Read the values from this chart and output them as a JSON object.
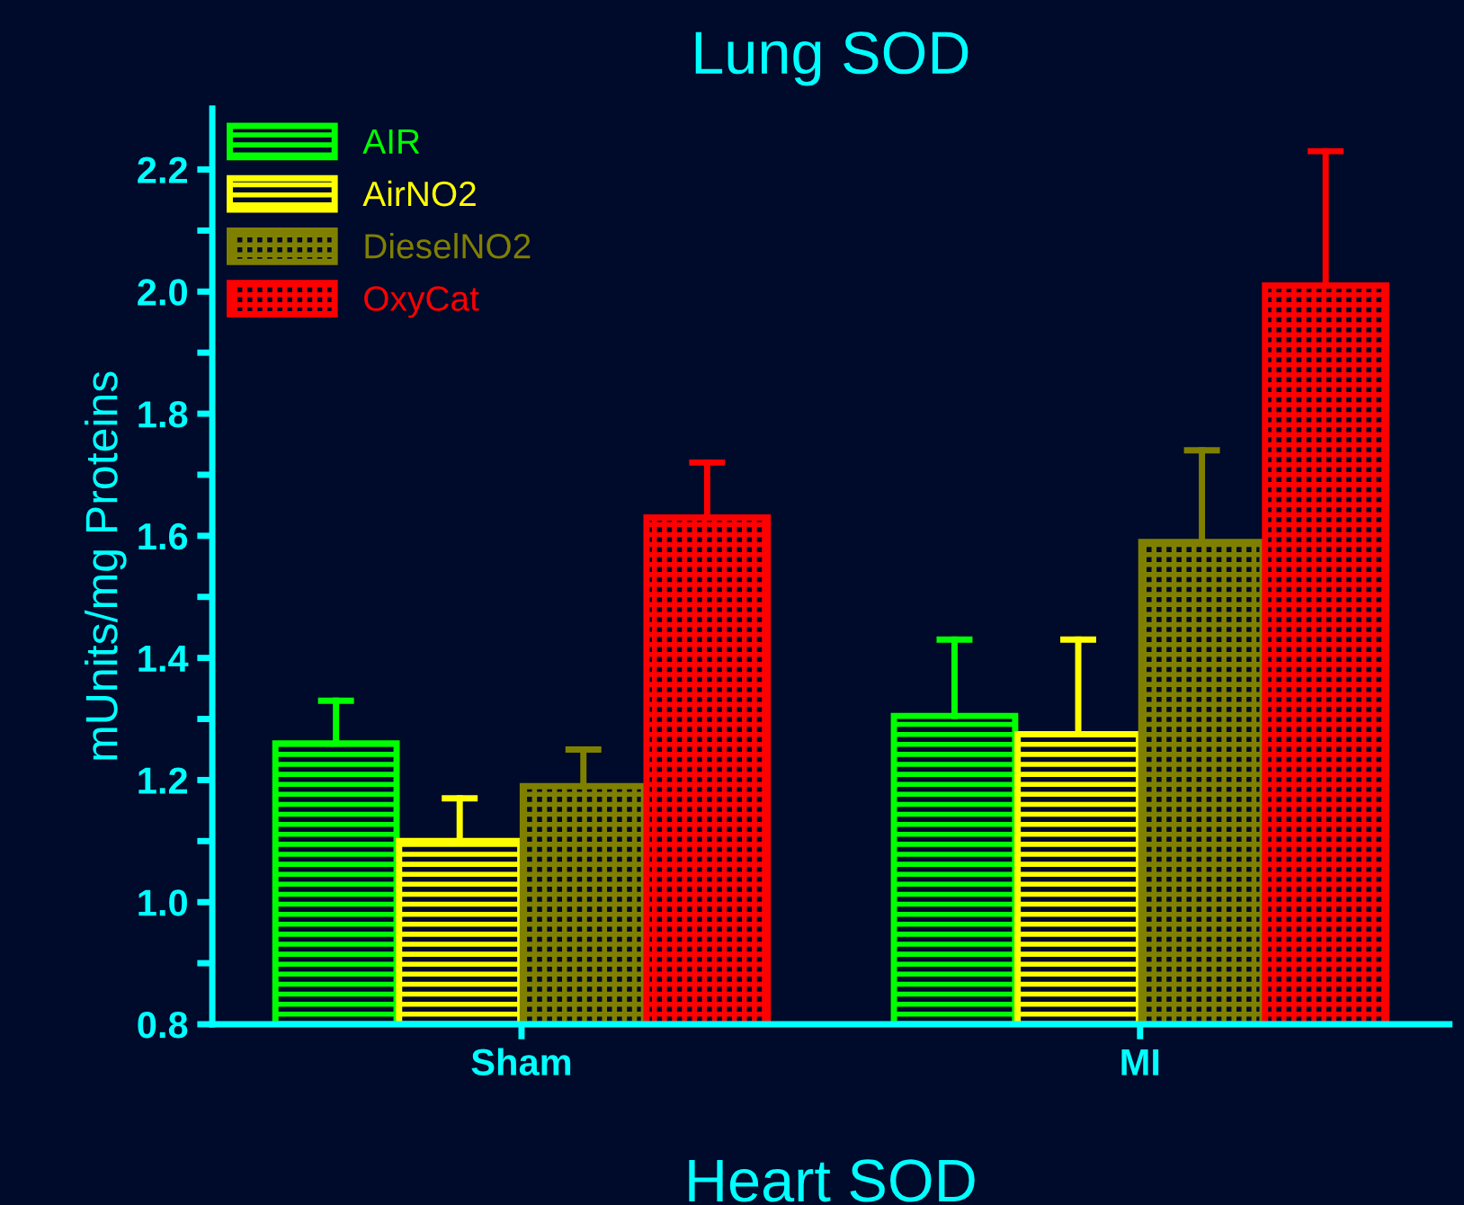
{
  "chart_data": {
    "type": "bar",
    "title": "Lung SOD",
    "xlabel": "Heart SOD",
    "ylabel": "mUnits/mg Proteins",
    "categories": [
      "Sham",
      "MI"
    ],
    "series": [
      {
        "name": "AIR",
        "color": "#00ff00",
        "values": [
          1.26,
          1.305
        ],
        "errors": [
          [
            1.26,
            1.33
          ],
          [
            1.305,
            1.43
          ]
        ]
      },
      {
        "name": "AirNO2",
        "color": "#ffff00",
        "values": [
          1.1,
          1.275
        ],
        "errors": [
          [
            1.1,
            1.17
          ],
          [
            1.275,
            1.43
          ]
        ]
      },
      {
        "name": "DieselNO2",
        "color": "#808000",
        "values": [
          1.19,
          1.59
        ],
        "errors": [
          [
            1.19,
            1.25
          ],
          [
            1.59,
            1.74
          ]
        ]
      },
      {
        "name": "OxyCat",
        "color": "#ff0000",
        "values": [
          1.63,
          2.01
        ],
        "errors": [
          [
            1.63,
            1.72
          ],
          [
            2.01,
            2.23
          ]
        ]
      }
    ],
    "ylim": [
      0.8,
      2.3
    ],
    "yticks": [
      0.8,
      {
        "value": 0.9,
        "label": null
      },
      {
        "value": 1.0,
        "label": "1.0"
      },
      {
        "value": 1.1,
        "label": null
      },
      1.2,
      {
        "value": 1.3,
        "label": null
      },
      1.4,
      {
        "value": 1.5,
        "label": null
      },
      1.6,
      {
        "value": 1.7,
        "label": null
      },
      1.8,
      {
        "value": 1.9,
        "label": null
      },
      {
        "value": 2.0,
        "label": "2.0"
      },
      {
        "value": 2.1,
        "label": null
      },
      2.2
    ],
    "grid": false,
    "legend": "top left"
  }
}
